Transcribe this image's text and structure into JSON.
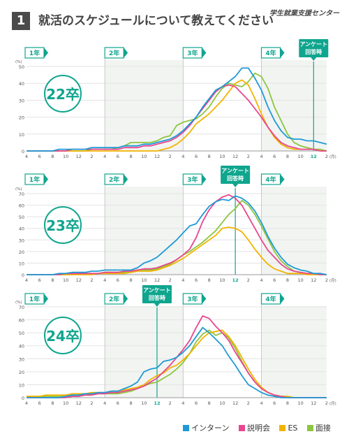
{
  "header": {
    "qnum": "1",
    "title": "就活のスケジュールについて教えてください",
    "brand": "学生就業支援センター"
  },
  "colors": {
    "インターン": "#1e9ad6",
    "説明会": "#e8468f",
    "ES": "#f2b400",
    "面接": "#8cc63f",
    "accent": "#0fa58e"
  },
  "legend": [
    {
      "label": "インターン",
      "color": "#1e9ad6"
    },
    {
      "label": "説明会",
      "color": "#e8468f"
    },
    {
      "label": "ES",
      "color": "#f2b400"
    },
    {
      "label": "面接",
      "color": "#8cc63f"
    }
  ],
  "chart_data": [
    {
      "type": "line",
      "cohort_label": "22卒",
      "unit": "(%)",
      "x_unit": "(月)",
      "ylim": [
        0,
        50
      ],
      "yticks": [
        0,
        10,
        20,
        30,
        40,
        50
      ],
      "x": [
        "4",
        "5",
        "6",
        "7",
        "8",
        "9",
        "10",
        "11",
        "12",
        "1",
        "2",
        "3",
        "4",
        "5",
        "6",
        "7",
        "8",
        "9",
        "10",
        "11",
        "12",
        "1",
        "2",
        "3",
        "4",
        "5",
        "6",
        "7",
        "8",
        "9",
        "10",
        "11",
        "12",
        "1",
        "2",
        "3",
        "4",
        "5",
        "6",
        "7",
        "8",
        "9",
        "10",
        "11",
        "12",
        "1",
        "2"
      ],
      "x_tick_labels": [
        "4",
        "6",
        "8",
        "10",
        "12",
        "2",
        "4",
        "6",
        "8",
        "10",
        "12",
        "2",
        "4",
        "6",
        "8",
        "10",
        "12",
        "2",
        "4",
        "6",
        "8",
        "10",
        "12",
        "2"
      ],
      "year_labels": [
        "1年",
        "2年",
        "3年",
        "4年"
      ],
      "survey_label": [
        "アンケート",
        "回答時"
      ],
      "survey_month": "12",
      "series": [
        {
          "name": "インターン",
          "values": [
            0,
            0,
            0,
            0,
            0,
            1,
            1,
            1,
            1,
            1,
            2,
            2,
            2,
            2,
            2,
            3,
            3,
            3,
            4,
            4,
            5,
            6,
            7,
            9,
            12,
            16,
            20,
            26,
            31,
            36,
            38,
            41,
            44,
            49,
            49,
            43,
            36,
            26,
            18,
            12,
            8,
            7,
            7,
            6,
            6,
            5,
            4
          ]
        },
        {
          "name": "説明会",
          "values": [
            0,
            0,
            0,
            0,
            0,
            0,
            0,
            1,
            1,
            1,
            1,
            1,
            1,
            1,
            1,
            2,
            2,
            2,
            3,
            3,
            4,
            5,
            6,
            8,
            11,
            15,
            20,
            25,
            30,
            35,
            38,
            39,
            38,
            34,
            30,
            25,
            20,
            14,
            9,
            5,
            3,
            2,
            1,
            1,
            1,
            0,
            0
          ]
        },
        {
          "name": "ES",
          "values": [
            0,
            0,
            0,
            0,
            0,
            0,
            0,
            0,
            0,
            0,
            0,
            0,
            0,
            0,
            0,
            0,
            0,
            0,
            0,
            0,
            0,
            1,
            2,
            4,
            7,
            11,
            16,
            19,
            22,
            26,
            30,
            35,
            40,
            42,
            39,
            31,
            22,
            14,
            8,
            4,
            2,
            1,
            1,
            1,
            1,
            0,
            0
          ]
        },
        {
          "name": "面接",
          "values": [
            0,
            0,
            0,
            0,
            0,
            0,
            0,
            0,
            0,
            0,
            1,
            1,
            1,
            1,
            2,
            3,
            5,
            5,
            5,
            5,
            6,
            8,
            9,
            15,
            17,
            18,
            19,
            22,
            26,
            32,
            37,
            40,
            39,
            38,
            41,
            46,
            44,
            37,
            26,
            18,
            10,
            5,
            3,
            2,
            1,
            1,
            0
          ]
        }
      ]
    },
    {
      "type": "line",
      "cohort_label": "23卒",
      "unit": "(%)",
      "x_unit": "(月)",
      "ylim": [
        0,
        70
      ],
      "yticks": [
        0,
        10,
        20,
        30,
        40,
        50,
        60,
        70
      ],
      "x": [
        "4",
        "5",
        "6",
        "7",
        "8",
        "9",
        "10",
        "11",
        "12",
        "1",
        "2",
        "3",
        "4",
        "5",
        "6",
        "7",
        "8",
        "9",
        "10",
        "11",
        "12",
        "1",
        "2",
        "3",
        "4",
        "5",
        "6",
        "7",
        "8",
        "9",
        "10",
        "11",
        "12",
        "1",
        "2",
        "3",
        "4",
        "5",
        "6",
        "7",
        "8",
        "9",
        "10",
        "11",
        "12",
        "1",
        "2"
      ],
      "x_tick_labels": [
        "4",
        "6",
        "8",
        "10",
        "12",
        "2",
        "4",
        "6",
        "8",
        "10",
        "12",
        "2",
        "4",
        "6",
        "8",
        "10",
        "12",
        "2",
        "4",
        "6",
        "8",
        "10",
        "12",
        "2"
      ],
      "year_labels": [
        "1年",
        "2年",
        "3年",
        "4年"
      ],
      "survey_label": [
        "アンケート",
        "回答時"
      ],
      "survey_month": "12",
      "series": [
        {
          "name": "インターン",
          "values": [
            0,
            0,
            0,
            0,
            0,
            1,
            1,
            2,
            2,
            2,
            3,
            3,
            4,
            4,
            4,
            4,
            4,
            6,
            10,
            12,
            15,
            20,
            25,
            30,
            36,
            42,
            44,
            52,
            59,
            63,
            65,
            64,
            68,
            66,
            62,
            55,
            45,
            33,
            23,
            15,
            9,
            6,
            4,
            3,
            1,
            1,
            0
          ]
        },
        {
          "name": "説明会",
          "values": [
            0,
            0,
            0,
            0,
            0,
            0,
            1,
            1,
            1,
            1,
            1,
            1,
            2,
            2,
            2,
            3,
            3,
            4,
            5,
            5,
            6,
            8,
            10,
            13,
            17,
            22,
            32,
            46,
            56,
            63,
            67,
            69,
            66,
            60,
            50,
            40,
            30,
            21,
            15,
            9,
            5,
            3,
            2,
            1,
            1,
            0,
            0
          ]
        },
        {
          "name": "ES",
          "values": [
            0,
            0,
            0,
            0,
            0,
            0,
            0,
            0,
            0,
            0,
            0,
            1,
            1,
            1,
            1,
            1,
            2,
            3,
            3,
            3,
            4,
            6,
            8,
            11,
            14,
            18,
            22,
            26,
            30,
            34,
            40,
            41,
            40,
            37,
            30,
            22,
            15,
            9,
            5,
            3,
            1,
            1,
            1,
            0,
            0,
            0,
            0
          ]
        },
        {
          "name": "面接",
          "values": [
            0,
            0,
            0,
            0,
            0,
            0,
            0,
            0,
            1,
            1,
            1,
            1,
            2,
            2,
            2,
            2,
            3,
            4,
            4,
            4,
            5,
            7,
            9,
            13,
            17,
            20,
            24,
            28,
            33,
            38,
            45,
            52,
            57,
            64,
            60,
            52,
            42,
            31,
            20,
            12,
            7,
            3,
            2,
            1,
            1,
            0,
            0
          ]
        }
      ]
    },
    {
      "type": "line",
      "cohort_label": "24卒",
      "unit": "(%)",
      "x_unit": "(月)",
      "ylim": [
        0,
        70
      ],
      "yticks": [
        0,
        10,
        20,
        30,
        40,
        50,
        60,
        70
      ],
      "x": [
        "4",
        "5",
        "6",
        "7",
        "8",
        "9",
        "10",
        "11",
        "12",
        "1",
        "2",
        "3",
        "4",
        "5",
        "6",
        "7",
        "8",
        "9",
        "10",
        "11",
        "12",
        "1",
        "2",
        "3",
        "4",
        "5",
        "6",
        "7",
        "8",
        "9",
        "10",
        "11",
        "12",
        "1",
        "2",
        "3",
        "4",
        "5",
        "6",
        "7",
        "8",
        "9",
        "10",
        "11",
        "12",
        "1",
        "2"
      ],
      "x_tick_labels": [
        "4",
        "6",
        "8",
        "10",
        "12",
        "2",
        "4",
        "6",
        "8",
        "10",
        "12",
        "2",
        "4",
        "6",
        "8",
        "10",
        "12",
        "2",
        "4",
        "6",
        "8",
        "10",
        "12",
        "2"
      ],
      "year_labels": [
        "1年",
        "2年",
        "3年",
        "4年"
      ],
      "survey_label": [
        "アンケート",
        "回答時"
      ],
      "survey_month": "12",
      "series": [
        {
          "name": "インターン",
          "values": [
            0,
            0,
            0,
            0,
            0,
            0,
            1,
            2,
            2,
            3,
            3,
            4,
            4,
            5,
            5,
            7,
            9,
            12,
            20,
            22,
            23,
            28,
            29,
            31,
            35,
            40,
            47,
            54,
            50,
            45,
            40,
            32,
            25,
            17,
            10,
            7,
            4,
            2,
            1,
            0,
            0,
            0,
            0,
            0,
            0,
            0,
            0
          ]
        },
        {
          "name": "説明会",
          "values": [
            0,
            0,
            0,
            0,
            0,
            0,
            0,
            1,
            1,
            2,
            2,
            3,
            3,
            4,
            4,
            5,
            6,
            7,
            9,
            12,
            15,
            20,
            25,
            31,
            37,
            44,
            54,
            63,
            61,
            55,
            50,
            44,
            35,
            27,
            19,
            12,
            7,
            4,
            2,
            1,
            0,
            0,
            0,
            0,
            0,
            0,
            0
          ]
        },
        {
          "name": "ES",
          "values": [
            1,
            1,
            1,
            2,
            2,
            2,
            2,
            3,
            3,
            3,
            4,
            4,
            4,
            5,
            5,
            6,
            7,
            8,
            10,
            14,
            17,
            19,
            23,
            25,
            29,
            34,
            40,
            46,
            50,
            51,
            52,
            47,
            40,
            31,
            22,
            14,
            8,
            4,
            2,
            1,
            1,
            0,
            0,
            0,
            0,
            0,
            0
          ]
        },
        {
          "name": "面接",
          "values": [
            1,
            1,
            1,
            1,
            1,
            1,
            1,
            2,
            2,
            2,
            3,
            3,
            3,
            3,
            3,
            4,
            5,
            7,
            9,
            11,
            12,
            15,
            18,
            22,
            27,
            34,
            43,
            49,
            52,
            48,
            50,
            46,
            38,
            28,
            19,
            12,
            7,
            4,
            2,
            1,
            1,
            0,
            0,
            0,
            0,
            0,
            0
          ]
        }
      ]
    }
  ]
}
